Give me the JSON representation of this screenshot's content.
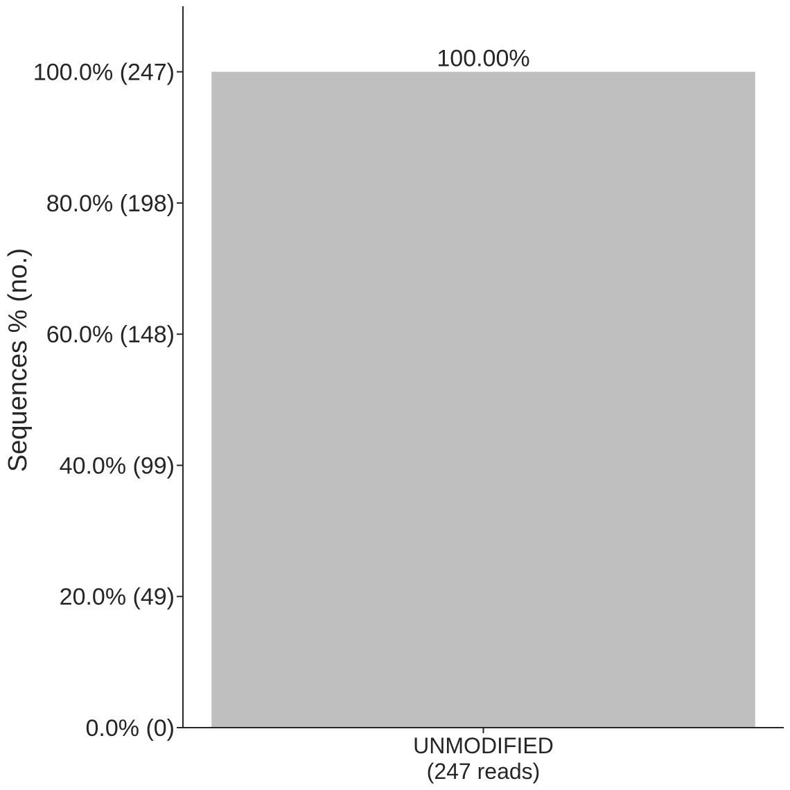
{
  "chart_data": {
    "type": "bar",
    "categories": [
      "UNMODIFIED\n(247 reads)"
    ],
    "values": [
      100.0
    ],
    "value_labels": [
      "100.00%"
    ],
    "ylabel": "Sequences % (no.)",
    "xlabel": "",
    "title": "",
    "ylim": [
      0,
      110
    ],
    "yticks": [
      0,
      20,
      40,
      60,
      80,
      100
    ],
    "ytick_labels": [
      "0.0% (0)",
      "20.0% (49)",
      "40.0% (99)",
      "60.0% (148)",
      "80.0% (198)",
      "100.0% (247)"
    ],
    "bar_color": "#bfbfbf",
    "axis_color": "#262626",
    "grid": false,
    "legend": "none"
  }
}
